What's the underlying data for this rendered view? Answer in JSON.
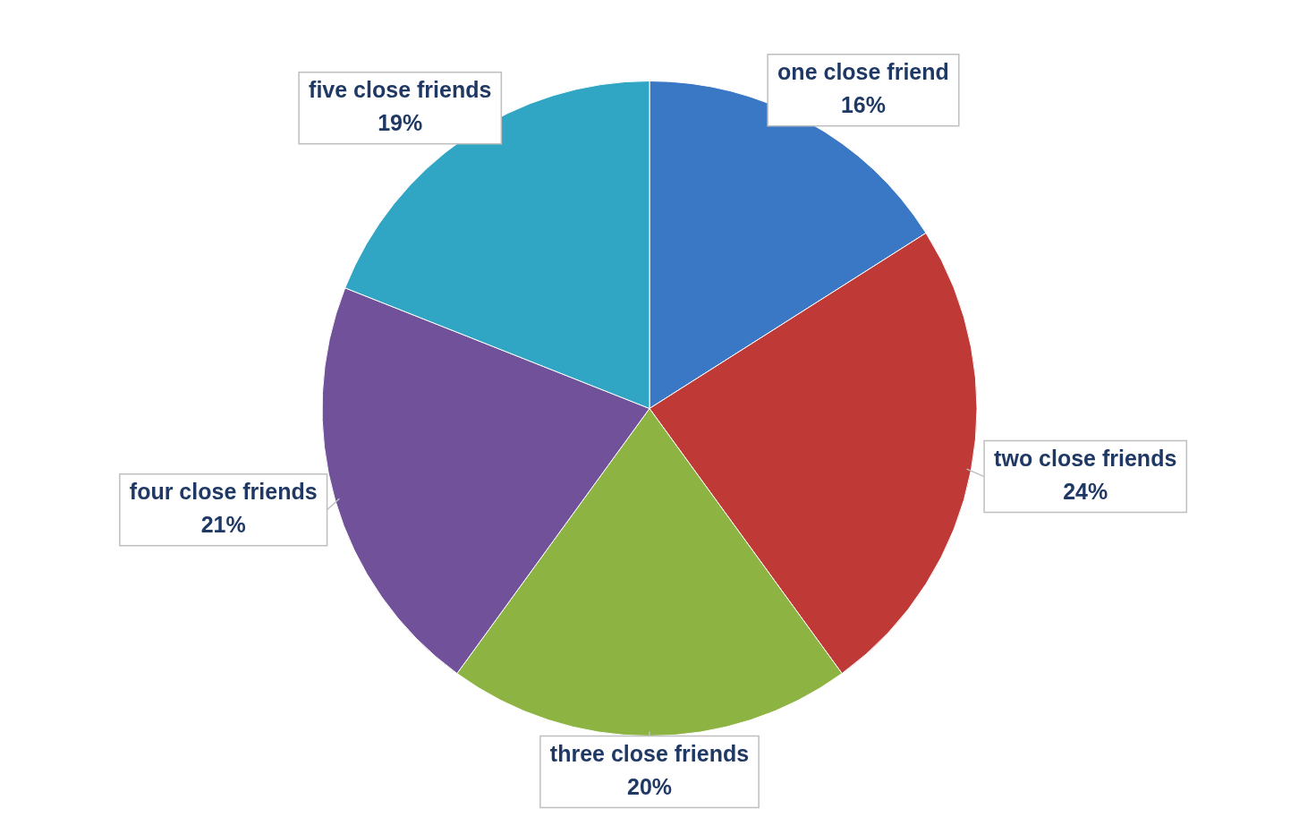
{
  "chart_data": {
    "type": "pie",
    "categories": [
      "one close friend",
      "two close friends",
      "three close friends",
      "four close friends",
      "five close friends"
    ],
    "values": [
      16,
      24,
      20,
      21,
      19
    ],
    "colors": [
      "#3a78c6",
      "#bf3937",
      "#8db443",
      "#71519a",
      "#31a6c4"
    ],
    "value_labels": [
      "16%",
      "24%",
      "20%",
      "21%",
      "19%"
    ],
    "legend": false
  }
}
